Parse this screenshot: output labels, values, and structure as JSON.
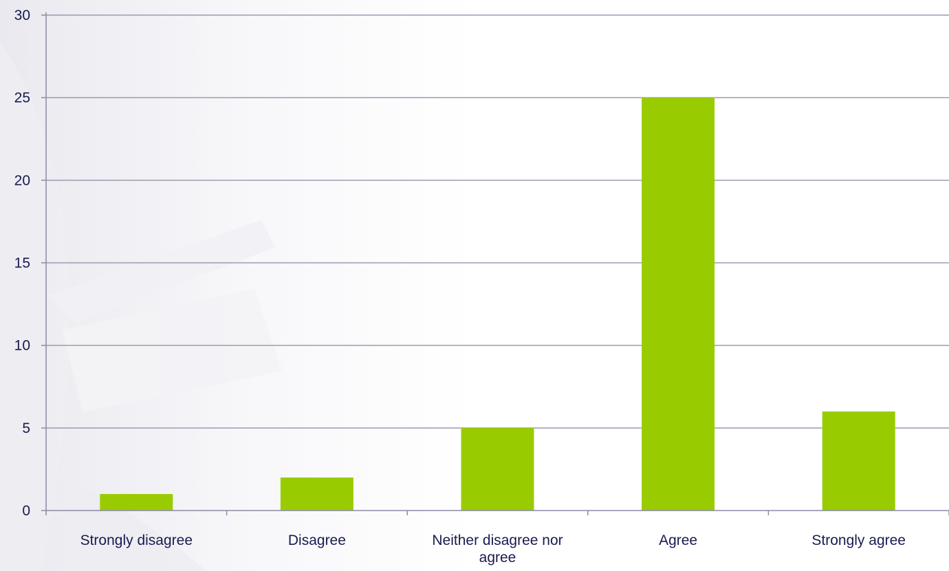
{
  "chart_data": {
    "type": "bar",
    "categories": [
      [
        "Strongly disagree"
      ],
      [
        "Disagree"
      ],
      [
        "Neither disagree nor",
        "agree"
      ],
      [
        "Agree"
      ],
      [
        "Strongly agree"
      ]
    ],
    "values": [
      1,
      2,
      5,
      25,
      6
    ],
    "ylim": [
      0,
      30
    ],
    "yticks": [
      0,
      5,
      10,
      15,
      20,
      25,
      30
    ],
    "grid": true,
    "bar_color": "#99cc00",
    "grid_color": "#9a9ab0",
    "axis_color": "#8a8aa6",
    "label_color": "#1a1a50",
    "xlabel": "",
    "ylabel": ""
  }
}
